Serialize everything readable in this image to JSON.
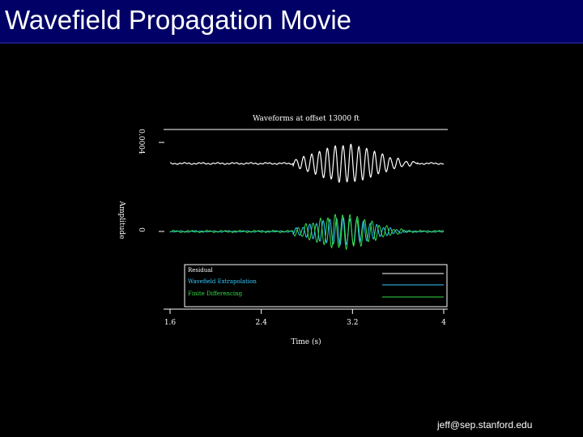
{
  "slide": {
    "title": "Wavefield Propagation Movie",
    "footer": "jeff@sep.stanford.edu",
    "colors": {
      "title_bar": "#000066",
      "background": "#000000",
      "text": "#ffffff"
    }
  },
  "chart_data": {
    "type": "line",
    "title": "Waveforms at offset 13000 ft",
    "xlabel": "Time (s)",
    "ylabel": "Amplitude",
    "xlim": [
      1.6,
      4.0
    ],
    "x_ticks": [
      "1.6",
      "2.4",
      "3.2",
      "4"
    ],
    "y_ticks": [
      "0.0004",
      "0"
    ],
    "legend_placement": "bottom",
    "series": [
      {
        "name": "Residual",
        "color": "#ffffff",
        "baseline": 0.0004,
        "peak_amplitude": 0.00011,
        "active_window": [
          2.78,
          3.62
        ]
      },
      {
        "name": "Wavefield Extrapolation",
        "color": "#33ccff",
        "baseline": 0,
        "peak_amplitude": 8e-05,
        "active_window": [
          2.78,
          3.55
        ]
      },
      {
        "name": "Finite Differencing",
        "color": "#33dd44",
        "baseline": 0,
        "peak_amplitude": 0.0001,
        "active_window": [
          2.78,
          3.55
        ]
      }
    ]
  }
}
